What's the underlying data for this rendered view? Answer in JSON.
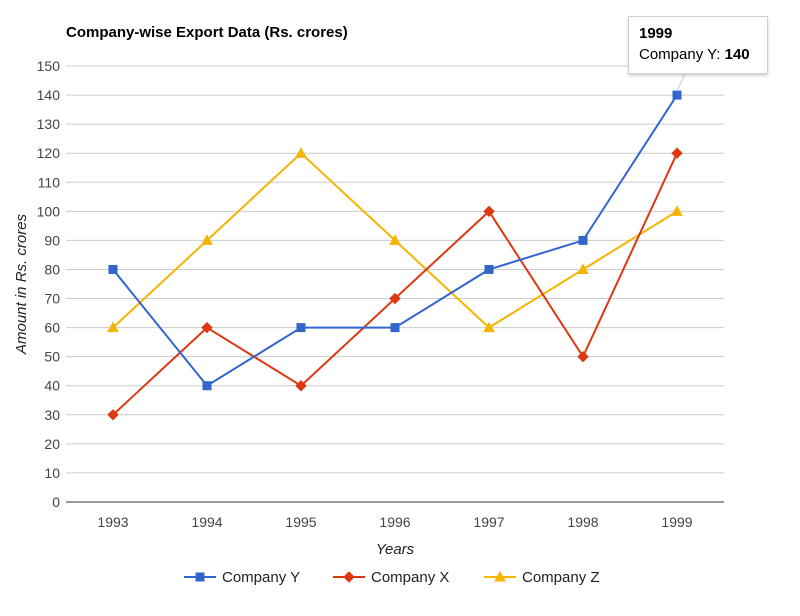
{
  "chart_data": {
    "type": "line",
    "title": "Company-wise Export Data (Rs. crores)",
    "xlabel": "Years",
    "ylabel": "Amount in Rs. crores",
    "categories": [
      "1993",
      "1994",
      "1995",
      "1996",
      "1997",
      "1998",
      "1999"
    ],
    "ylim": [
      0,
      150
    ],
    "yticks": [
      "0",
      "10",
      "20",
      "30",
      "40",
      "50",
      "60",
      "70",
      "80",
      "90",
      "100",
      "110",
      "120",
      "130",
      "140",
      "150"
    ],
    "grid": true,
    "legend_position": "bottom",
    "series": [
      {
        "name": "Company Y",
        "color": "#3366cc",
        "marker": "square",
        "values": [
          80,
          40,
          60,
          60,
          80,
          90,
          140
        ]
      },
      {
        "name": "Company X",
        "color": "#dc3912",
        "marker": "diamond",
        "values": [
          30,
          60,
          40,
          70,
          100,
          50,
          120
        ]
      },
      {
        "name": "Company Z",
        "color": "#f5b400",
        "marker": "triangle",
        "values": [
          60,
          90,
          120,
          90,
          60,
          80,
          100
        ]
      }
    ]
  },
  "tooltip": {
    "title": "1999",
    "label": "Company Y: ",
    "value": "140"
  }
}
